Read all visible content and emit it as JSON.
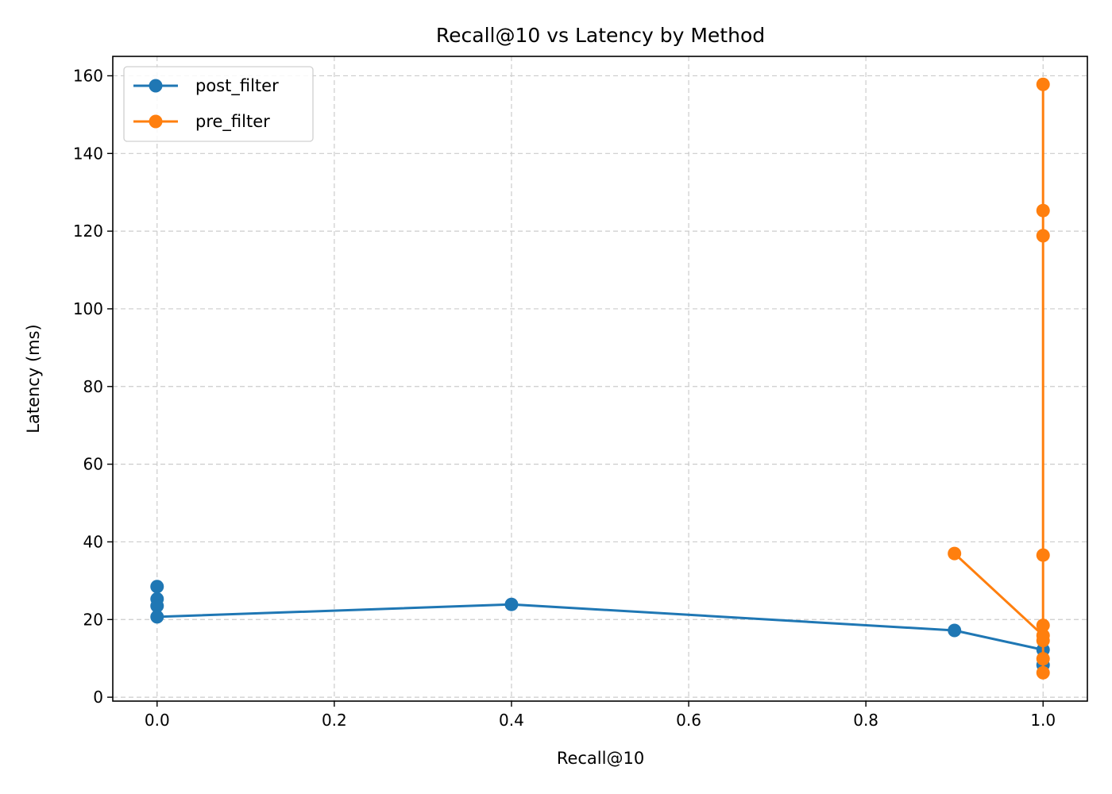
{
  "chart_data": {
    "type": "line",
    "title": "Recall@10 vs Latency by Method",
    "xlabel": "Recall@10",
    "ylabel": "Latency (ms)",
    "xlim": [
      -0.05,
      1.05
    ],
    "ylim": [
      -1,
      165
    ],
    "xticks": [
      0.0,
      0.2,
      0.4,
      0.6,
      0.8,
      1.0
    ],
    "xtick_labels": [
      "0.0",
      "0.2",
      "0.4",
      "0.6",
      "0.8",
      "1.0"
    ],
    "yticks": [
      0,
      20,
      40,
      60,
      80,
      100,
      120,
      140,
      160
    ],
    "ytick_labels": [
      "0",
      "20",
      "40",
      "60",
      "80",
      "100",
      "120",
      "140",
      "160"
    ],
    "grid": true,
    "legend_position": "top-left",
    "series": [
      {
        "name": "post_filter",
        "color": "#1f77b4",
        "x": [
          0.0,
          0.0,
          0.0,
          0.0,
          0.4,
          0.9,
          1.0,
          1.0
        ],
        "y": [
          28.5,
          25.3,
          23.5,
          20.7,
          23.9,
          17.2,
          12.2,
          8.3
        ]
      },
      {
        "name": "pre_filter",
        "color": "#ff7f0e",
        "x": [
          0.9,
          1.0,
          1.0,
          1.0,
          1.0,
          1.0,
          1.0,
          1.0,
          1.0,
          1.0
        ],
        "y": [
          37.0,
          15.9,
          6.3,
          9.9,
          14.6,
          18.5,
          36.6,
          118.8,
          125.3,
          157.8
        ]
      }
    ]
  }
}
